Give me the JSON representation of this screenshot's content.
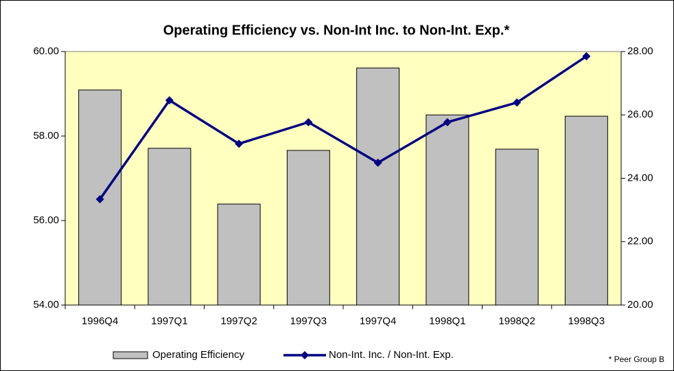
{
  "chart_data": {
    "type": "bar_line",
    "title": "Operating Efficiency  vs.  Non-Int Inc. to Non-Int. Exp.*",
    "categories": [
      "1996Q4",
      "1997Q1",
      "1997Q2",
      "1997Q3",
      "1997Q4",
      "1998Q1",
      "1998Q2",
      "1998Q3"
    ],
    "series": [
      {
        "name": "Operating Efficiency",
        "type": "bar",
        "color": "#c0c0c0",
        "axis": "y",
        "values": [
          59.09,
          57.71,
          56.39,
          57.66,
          59.61,
          58.5,
          57.69,
          58.47
        ]
      },
      {
        "name": "Non-Int. Inc. / Non-Int. Exp.",
        "type": "line",
        "color": "#000080",
        "axis": "y2",
        "values": [
          23.34,
          26.46,
          25.09,
          25.77,
          24.49,
          25.77,
          26.39,
          27.85
        ]
      }
    ],
    "ylim": [
      54,
      60
    ],
    "yticks": [
      {
        "value": 54,
        "label": "54.00"
      },
      {
        "value": 56,
        "label": "56.00"
      },
      {
        "value": 58,
        "label": "58.00"
      },
      {
        "value": 60,
        "label": "60.00"
      }
    ],
    "y2lim": [
      20,
      28
    ],
    "y2ticks": [
      {
        "value": 20,
        "label": "20.00"
      },
      {
        "value": 22,
        "label": "22.00"
      },
      {
        "value": 24,
        "label": "24.00"
      },
      {
        "value": 26,
        "label": "26.00"
      },
      {
        "value": 28,
        "label": "28.00"
      }
    ],
    "grid": false,
    "legend": "bottom",
    "annotation": "* Peer Group B"
  }
}
